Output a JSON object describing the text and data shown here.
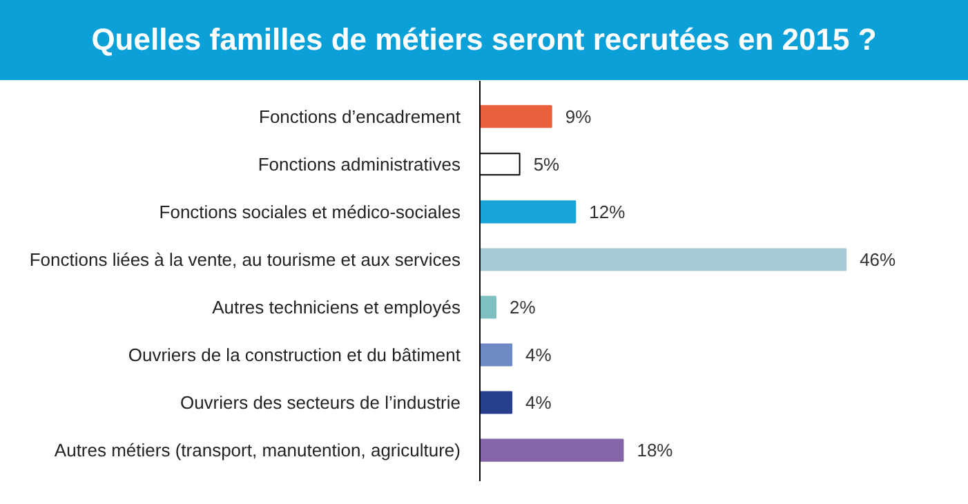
{
  "chart_data": {
    "type": "bar",
    "orientation": "horizontal",
    "title": "Quelles familles de métiers seront recrutées en 2015 ?",
    "categories": [
      "Fonctions d’encadrement",
      "Fonctions administratives",
      "Fonctions sociales et médico-sociales",
      "Fonctions liées à la vente, au tourisme et aux services",
      "Autres techniciens et employés",
      "Ouvriers de la construction et du bâtiment",
      "Ouvriers des secteurs de l’industrie",
      "Autres métiers (transport, manutention, agriculture)"
    ],
    "values": [
      9,
      5,
      12,
      46,
      2,
      4,
      4,
      18
    ],
    "value_labels": [
      "9%",
      "5%",
      "12%",
      "46%",
      "2%",
      "4%",
      "4%",
      "18%"
    ],
    "colors": [
      "#e8603c",
      "#ffffff",
      "#1aa3d9",
      "#a7c8d6",
      "#80bfc0",
      "#6e8ac4",
      "#283f8e",
      "#8566a8"
    ],
    "grid": false
  }
}
